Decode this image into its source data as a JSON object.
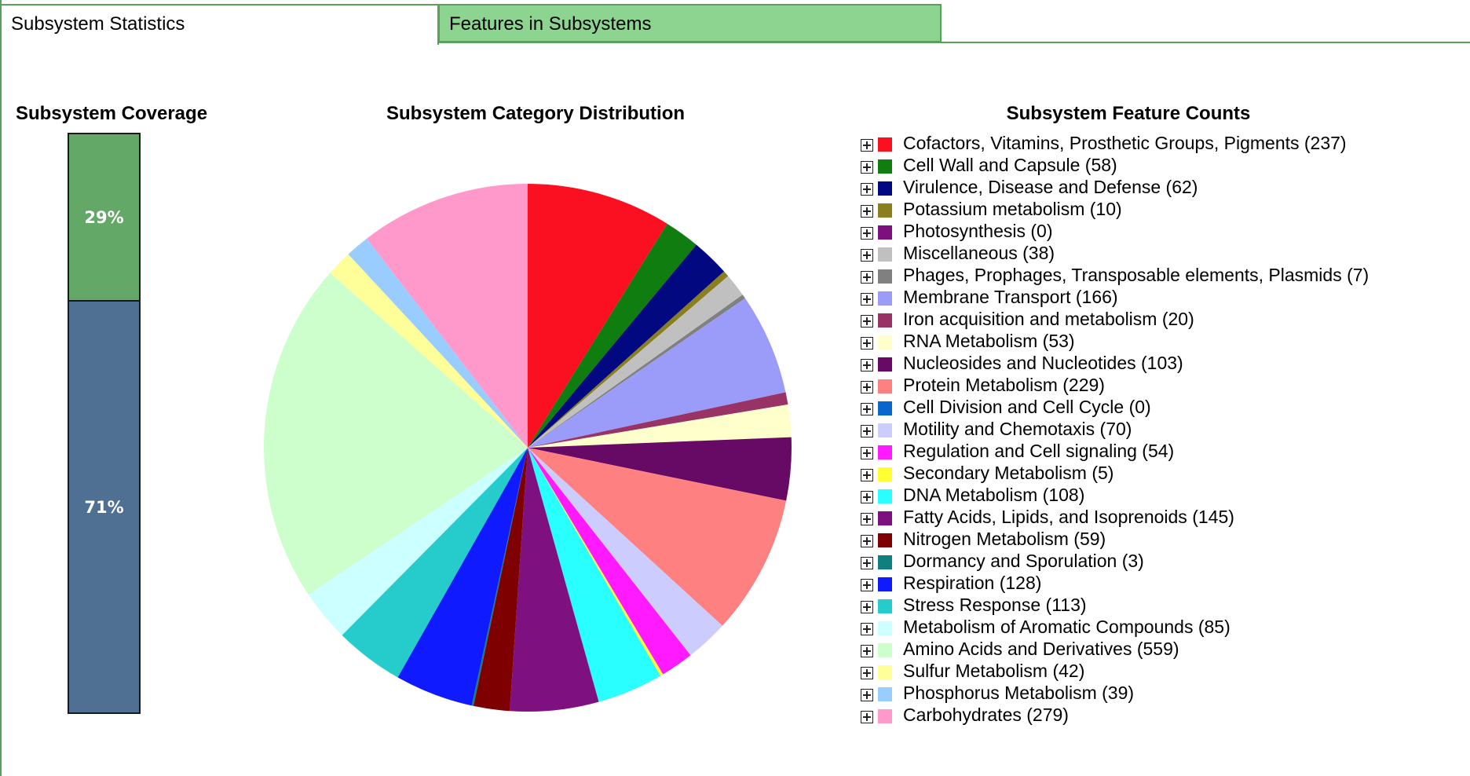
{
  "tabs": [
    {
      "label": "Subsystem Statistics",
      "active": true
    },
    {
      "label": "Features in Subsystems",
      "active": false
    }
  ],
  "coverage": {
    "title": "Subsystem Coverage",
    "covered_percent": 29,
    "uncovered_percent": 71,
    "covered_label": "29%",
    "uncovered_label": "71%",
    "covered_color": "#64a868",
    "uncovered_color": "#4f7093"
  },
  "pie_title": "Subsystem Category Distribution",
  "legend_title": "Subsystem Feature Counts",
  "chart_data": {
    "type": "pie",
    "title": "Subsystem Category Distribution",
    "series": [
      {
        "name": "Cofactors, Vitamins, Prosthetic Groups, Pigments",
        "value": 237,
        "color": "#fa1021",
        "label": "Cofactors, Vitamins, Prosthetic Groups, Pigments (237)"
      },
      {
        "name": "Cell Wall and Capsule",
        "value": 58,
        "color": "#0f7d10",
        "label": "Cell Wall and Capsule (58)"
      },
      {
        "name": "Virulence, Disease and Defense",
        "value": 62,
        "color": "#02087f",
        "label": "Virulence, Disease and Defense (62)"
      },
      {
        "name": "Potassium metabolism",
        "value": 10,
        "color": "#8a7f1e",
        "label": "Potassium metabolism (10)"
      },
      {
        "name": "Photosynthesis",
        "value": 0,
        "color": "#7e107e",
        "label": "Photosynthesis (0)"
      },
      {
        "name": "Miscellaneous",
        "value": 38,
        "color": "#c0c0c0",
        "label": "Miscellaneous (38)"
      },
      {
        "name": "Phages, Prophages, Transposable elements, Plasmids",
        "value": 7,
        "color": "#808080",
        "label": "Phages, Prophages, Transposable elements, Plasmids (7)"
      },
      {
        "name": "Membrane Transport",
        "value": 166,
        "color": "#9b9cfa",
        "label": "Membrane Transport (166)"
      },
      {
        "name": "Iron acquisition and metabolism",
        "value": 20,
        "color": "#993366",
        "label": "Iron acquisition and metabolism (20)"
      },
      {
        "name": "RNA Metabolism",
        "value": 53,
        "color": "#ffffcc",
        "label": "RNA Metabolism (53)"
      },
      {
        "name": "Nucleosides and Nucleotides",
        "value": 103,
        "color": "#660a66",
        "label": "Nucleosides and Nucleotides (103)"
      },
      {
        "name": "Protein Metabolism",
        "value": 229,
        "color": "#ff8080",
        "label": "Protein Metabolism (229)"
      },
      {
        "name": "Cell Division and Cell Cycle",
        "value": 0,
        "color": "#0a66cc",
        "label": "Cell Division and Cell Cycle (0)"
      },
      {
        "name": "Motility and Chemotaxis",
        "value": 70,
        "color": "#ccccff",
        "label": "Motility and Chemotaxis (70)"
      },
      {
        "name": "Regulation and Cell signaling",
        "value": 54,
        "color": "#ff1aff",
        "label": "Regulation and Cell signaling (54)"
      },
      {
        "name": "Secondary Metabolism",
        "value": 5,
        "color": "#ffff33",
        "label": "Secondary Metabolism (5)"
      },
      {
        "name": "DNA Metabolism",
        "value": 108,
        "color": "#2affff",
        "label": "DNA Metabolism (108)"
      },
      {
        "name": "Fatty Acids, Lipids, and Isoprenoids",
        "value": 145,
        "color": "#7f107f",
        "label": "Fatty Acids, Lipids, and Isoprenoids (145)"
      },
      {
        "name": "Nitrogen Metabolism",
        "value": 59,
        "color": "#7f0000",
        "label": "Nitrogen Metabolism (59)"
      },
      {
        "name": "Dormancy and Sporulation",
        "value": 3,
        "color": "#0f7f7f",
        "label": "Dormancy and Sporulation (3)"
      },
      {
        "name": "Respiration",
        "value": 128,
        "color": "#0f1aff",
        "label": "Respiration (128)"
      },
      {
        "name": "Stress Response",
        "value": 113,
        "color": "#26cccc",
        "label": "Stress Response (113)"
      },
      {
        "name": "Metabolism of Aromatic Compounds",
        "value": 85,
        "color": "#ccffff",
        "label": "Metabolism of Aromatic Compounds (85)"
      },
      {
        "name": "Amino Acids and Derivatives",
        "value": 559,
        "color": "#ccffcc",
        "label": "Amino Acids and Derivatives (559)"
      },
      {
        "name": "Sulfur Metabolism",
        "value": 42,
        "color": "#ffff99",
        "label": "Sulfur Metabolism (42)"
      },
      {
        "name": "Phosphorus Metabolism",
        "value": 39,
        "color": "#99ccff",
        "label": "Phosphorus Metabolism (39)"
      },
      {
        "name": "Carbohydrates",
        "value": 279,
        "color": "#ff99cc",
        "label": "Carbohydrates (279)"
      }
    ]
  }
}
